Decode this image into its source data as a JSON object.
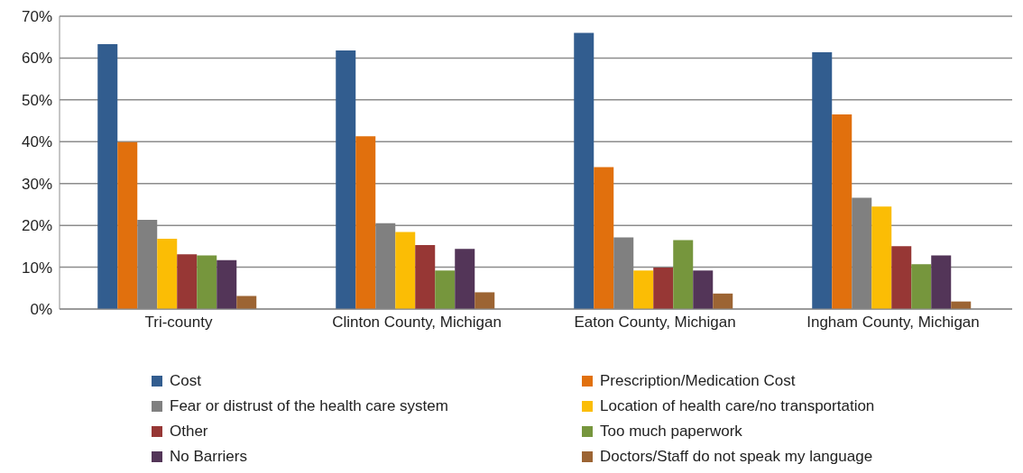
{
  "chart_data": {
    "type": "bar",
    "categories": [
      "Tri-county",
      "Clinton County, Michigan",
      "Eaton County, Michigan",
      "Ingham County, Michigan"
    ],
    "series": [
      {
        "name": "Cost",
        "color": "#325d8f",
        "values": [
          63.3,
          61.8,
          66.0,
          61.4
        ]
      },
      {
        "name": "Prescription/Medication Cost",
        "color": "#e1700d",
        "values": [
          39.9,
          41.3,
          33.9,
          46.5
        ]
      },
      {
        "name": "Fear or distrust of the health care system",
        "color": "#808080",
        "values": [
          21.3,
          20.5,
          17.1,
          26.6
        ]
      },
      {
        "name": "Location of health care/no transportation",
        "color": "#fbbd05",
        "values": [
          16.8,
          18.4,
          9.2,
          24.5
        ]
      },
      {
        "name": "Other",
        "color": "#973735",
        "values": [
          13.1,
          15.3,
          9.9,
          15.0
        ]
      },
      {
        "name": "Too much paperwork",
        "color": "#76963d",
        "values": [
          12.8,
          9.2,
          16.5,
          10.7
        ]
      },
      {
        "name": "No Barriers",
        "color": "#533558",
        "values": [
          11.7,
          14.4,
          9.2,
          12.8
        ]
      },
      {
        "name": "Doctors/Staff do not speak my language",
        "color": "#9c6433",
        "values": [
          3.1,
          4.0,
          3.7,
          1.8
        ]
      }
    ],
    "ylim": [
      0,
      70
    ],
    "yticks": [
      {
        "value": 0,
        "label": "0%"
      },
      {
        "value": 10,
        "label": "10%"
      },
      {
        "value": 20,
        "label": "20%"
      },
      {
        "value": 30,
        "label": "30%"
      },
      {
        "value": 40,
        "label": "40%"
      },
      {
        "value": 50,
        "label": "50%"
      },
      {
        "value": 60,
        "label": "60%"
      },
      {
        "value": 70,
        "label": "70%"
      }
    ],
    "grid": "y",
    "legend": "bottom"
  }
}
